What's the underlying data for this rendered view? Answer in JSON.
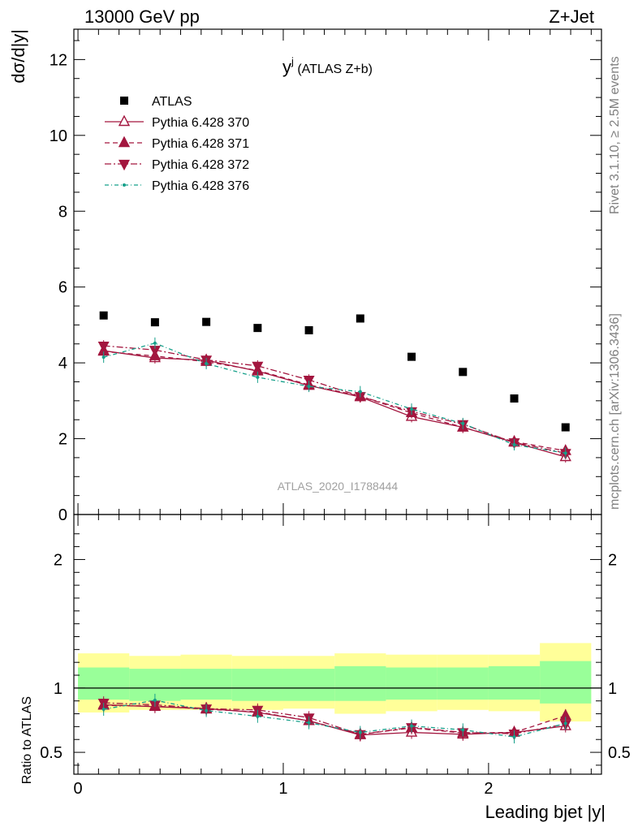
{
  "header": {
    "left": "13000 GeV pp",
    "right": "Z+Jet",
    "plot_title_main": "y",
    "plot_title_sup": "j",
    "plot_title_suffix": " (ATLAS Z+b)",
    "analysis_id": "ATLAS_2020_I1788444",
    "side_rivet": "Rivet 3.1.10, ≥ 2.5M events",
    "side_mcplots": "mcplots.cern.ch [arXiv:1306.3436]"
  },
  "chart_data": [
    {
      "type": "scatter",
      "panel": "main",
      "ylabel": "dσ/d|y|",
      "xlabel": "Leading bjet |y|",
      "xlim": [
        -0.02,
        2.55
      ],
      "ylim": [
        0,
        12.8
      ],
      "yticks": [
        0,
        2,
        4,
        6,
        8,
        10,
        12
      ],
      "xticks": [
        0,
        1,
        2
      ],
      "legend_position": "top-left",
      "x": [
        0.125,
        0.375,
        0.625,
        0.875,
        1.125,
        1.375,
        1.625,
        1.875,
        2.125,
        2.375
      ],
      "series": [
        {
          "name": "ATLAS",
          "color": "#000000",
          "marker": "square",
          "values": [
            5.25,
            5.07,
            5.08,
            4.92,
            4.86,
            5.17,
            4.16,
            3.76,
            3.06,
            2.3
          ]
        },
        {
          "name": "Pythia 6.428 370",
          "color": "#a3163f",
          "marker": "triangle-open",
          "dash": "solid",
          "values": [
            4.32,
            4.13,
            4.07,
            3.78,
            3.4,
            3.1,
            2.58,
            2.3,
            1.9,
            1.52
          ]
        },
        {
          "name": "Pythia 6.428 371",
          "color": "#a3163f",
          "marker": "triangle-filled",
          "dash": "6,4",
          "values": [
            4.3,
            4.18,
            4.03,
            3.8,
            3.42,
            3.12,
            2.68,
            2.3,
            1.92,
            1.68
          ]
        },
        {
          "name": "Pythia 6.428 372",
          "color": "#a3163f",
          "marker": "triangle-down",
          "dash": "8,3,2,3",
          "values": [
            4.45,
            4.34,
            4.08,
            3.92,
            3.55,
            3.12,
            2.72,
            2.38,
            1.9,
            1.62
          ]
        },
        {
          "name": "Pythia 6.428 376",
          "color": "#16a08a",
          "marker": "dot",
          "dash": "5,3,1,3",
          "values": [
            4.15,
            4.52,
            3.98,
            3.62,
            3.38,
            3.24,
            2.78,
            2.4,
            1.84,
            1.62
          ]
        }
      ]
    },
    {
      "type": "line",
      "panel": "ratio",
      "ylabel": "Ratio to ATLAS",
      "xlabel": "Leading bjet |y|",
      "ylim": [
        0.33,
        2.35
      ],
      "yticks": [
        0.5,
        1,
        2
      ],
      "xticks": [
        0,
        1,
        2
      ],
      "band_edges": [
        0,
        0.25,
        0.5,
        0.75,
        1.0,
        1.25,
        1.5,
        1.75,
        2.0,
        2.25,
        2.5
      ],
      "band_stat_syst": [
        [
          0.81,
          1.27
        ],
        [
          0.83,
          1.25
        ],
        [
          0.83,
          1.26
        ],
        [
          0.83,
          1.25
        ],
        [
          0.84,
          1.25
        ],
        [
          0.8,
          1.27
        ],
        [
          0.82,
          1.26
        ],
        [
          0.83,
          1.26
        ],
        [
          0.82,
          1.26
        ],
        [
          0.74,
          1.35
        ]
      ],
      "band_stat": [
        [
          0.91,
          1.16
        ],
        [
          0.9,
          1.15
        ],
        [
          0.91,
          1.15
        ],
        [
          0.9,
          1.15
        ],
        [
          0.9,
          1.15
        ],
        [
          0.9,
          1.17
        ],
        [
          0.91,
          1.16
        ],
        [
          0.91,
          1.16
        ],
        [
          0.91,
          1.17
        ],
        [
          0.88,
          1.21
        ]
      ],
      "x": [
        0.125,
        0.375,
        0.625,
        0.875,
        1.125,
        1.375,
        1.625,
        1.875,
        2.125,
        2.375
      ],
      "series": [
        {
          "name": "Pythia 6.428 370",
          "color": "#a3163f",
          "marker": "triangle-open",
          "dash": "solid",
          "values": [
            0.87,
            0.855,
            0.84,
            0.81,
            0.745,
            0.635,
            0.655,
            0.64,
            0.655,
            0.705
          ]
        },
        {
          "name": "Pythia 6.428 371",
          "color": "#a3163f",
          "marker": "triangle-filled",
          "dash": "6,4",
          "values": [
            0.865,
            0.86,
            0.835,
            0.815,
            0.745,
            0.64,
            0.69,
            0.65,
            0.655,
            0.785
          ]
        },
        {
          "name": "Pythia 6.428 372",
          "color": "#a3163f",
          "marker": "triangle-down",
          "dash": "8,3,2,3",
          "values": [
            0.885,
            0.87,
            0.84,
            0.83,
            0.77,
            0.64,
            0.695,
            0.655,
            0.645,
            0.72
          ]
        },
        {
          "name": "Pythia 6.428 376",
          "color": "#16a08a",
          "marker": "dot",
          "dash": "5,3,1,3",
          "values": [
            0.835,
            0.905,
            0.825,
            0.78,
            0.73,
            0.655,
            0.705,
            0.675,
            0.62,
            0.725
          ]
        }
      ]
    }
  ]
}
